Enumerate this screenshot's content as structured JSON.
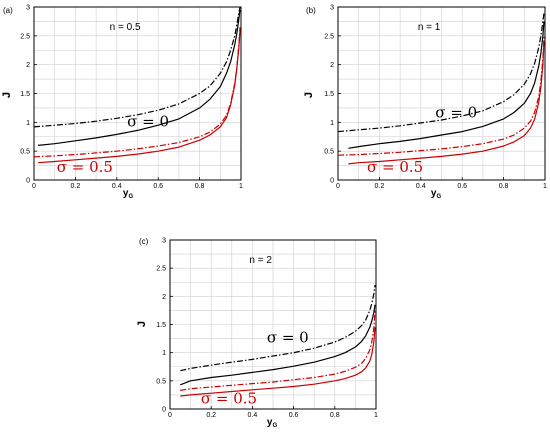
{
  "chart_data": [
    {
      "type": "line",
      "panel_label": "(a)",
      "annotation": "n = 0.5",
      "xlabel": "y",
      "xlabel_sub": "G",
      "ylabel": "J",
      "xlim": [
        0,
        1
      ],
      "ylim": [
        0,
        3
      ],
      "xticks": [
        "0",
        "0.2",
        "0.4",
        "0.6",
        "0.8",
        "1"
      ],
      "yticks": [
        "0",
        "0.5",
        "1",
        "1.5",
        "2",
        "2.5",
        "3"
      ],
      "grid": true,
      "curve_labels": [
        {
          "text": "σ = 0",
          "color": "#000000",
          "at": [
            0.45,
            0.93
          ]
        },
        {
          "text": "σ = 0.5",
          "color": "#cc0000",
          "at": [
            0.11,
            0.14
          ]
        }
      ],
      "series": [
        {
          "color": "#000000",
          "style": "solid",
          "x": [
            0.02,
            0.1,
            0.2,
            0.3,
            0.4,
            0.5,
            0.6,
            0.7,
            0.8,
            0.85,
            0.9,
            0.93,
            0.95,
            0.97,
            0.98,
            0.99,
            0.995
          ],
          "y": [
            0.6,
            0.63,
            0.68,
            0.73,
            0.79,
            0.86,
            0.95,
            1.06,
            1.25,
            1.4,
            1.62,
            1.85,
            2.05,
            2.35,
            2.55,
            2.8,
            2.95
          ]
        },
        {
          "color": "#000000",
          "style": "dashdot",
          "x": [
            0.0,
            0.1,
            0.2,
            0.3,
            0.4,
            0.5,
            0.6,
            0.7,
            0.8,
            0.85,
            0.9,
            0.93,
            0.95,
            0.97,
            0.98,
            0.99,
            0.995
          ],
          "y": [
            0.92,
            0.95,
            0.98,
            1.02,
            1.07,
            1.13,
            1.21,
            1.32,
            1.5,
            1.63,
            1.85,
            2.05,
            2.25,
            2.5,
            2.7,
            2.9,
            3.0
          ]
        },
        {
          "color": "#cc0000",
          "style": "solid",
          "x": [
            0.02,
            0.1,
            0.2,
            0.3,
            0.4,
            0.5,
            0.6,
            0.7,
            0.8,
            0.85,
            0.9,
            0.93,
            0.95,
            0.97,
            0.98,
            0.99,
            0.995
          ],
          "y": [
            0.3,
            0.32,
            0.35,
            0.38,
            0.41,
            0.45,
            0.5,
            0.57,
            0.69,
            0.78,
            0.92,
            1.08,
            1.3,
            1.65,
            1.95,
            2.3,
            2.6
          ]
        },
        {
          "color": "#cc0000",
          "style": "dashdot",
          "x": [
            0.0,
            0.1,
            0.2,
            0.3,
            0.4,
            0.5,
            0.6,
            0.7,
            0.8,
            0.85,
            0.9,
            0.93,
            0.95,
            0.97,
            0.98,
            0.99,
            0.995
          ],
          "y": [
            0.4,
            0.42,
            0.44,
            0.47,
            0.5,
            0.54,
            0.59,
            0.65,
            0.75,
            0.83,
            0.97,
            1.12,
            1.33,
            1.68,
            1.97,
            2.35,
            2.65
          ]
        }
      ]
    },
    {
      "type": "line",
      "panel_label": "(b)",
      "annotation": "n = 1",
      "xlabel": "y",
      "xlabel_sub": "G",
      "ylabel": "J",
      "xlim": [
        0,
        1
      ],
      "ylim": [
        0,
        3
      ],
      "xticks": [
        "0",
        "0.2",
        "0.4",
        "0.6",
        "0.8",
        "1"
      ],
      "yticks": [
        "0",
        "0.5",
        "1",
        "1.5",
        "2",
        "2.5",
        "3"
      ],
      "grid": true,
      "curve_labels": [
        {
          "text": "σ = 0",
          "color": "#000000",
          "at": [
            0.47,
            1.08
          ]
        },
        {
          "text": "σ = 0.5",
          "color": "#cc0000",
          "at": [
            0.14,
            0.14
          ]
        }
      ],
      "series": [
        {
          "color": "#000000",
          "style": "solid",
          "x": [
            0.05,
            0.1,
            0.2,
            0.3,
            0.4,
            0.5,
            0.6,
            0.7,
            0.8,
            0.85,
            0.9,
            0.93,
            0.95,
            0.97,
            0.98,
            0.99,
            0.995
          ],
          "y": [
            0.55,
            0.58,
            0.63,
            0.67,
            0.72,
            0.78,
            0.84,
            0.93,
            1.06,
            1.17,
            1.33,
            1.5,
            1.68,
            1.98,
            2.2,
            2.5,
            2.75
          ]
        },
        {
          "color": "#000000",
          "style": "dashdot",
          "x": [
            0.0,
            0.1,
            0.2,
            0.3,
            0.4,
            0.5,
            0.6,
            0.7,
            0.8,
            0.85,
            0.9,
            0.93,
            0.95,
            0.97,
            0.98,
            0.99,
            0.995
          ],
          "y": [
            0.84,
            0.87,
            0.9,
            0.94,
            0.99,
            1.04,
            1.11,
            1.2,
            1.36,
            1.48,
            1.66,
            1.84,
            2.02,
            2.3,
            2.5,
            2.75,
            2.9
          ]
        },
        {
          "color": "#cc0000",
          "style": "solid",
          "x": [
            0.05,
            0.1,
            0.2,
            0.3,
            0.4,
            0.5,
            0.6,
            0.7,
            0.8,
            0.85,
            0.9,
            0.93,
            0.95,
            0.97,
            0.98,
            0.99,
            0.995
          ],
          "y": [
            0.28,
            0.3,
            0.32,
            0.35,
            0.38,
            0.41,
            0.45,
            0.5,
            0.59,
            0.66,
            0.77,
            0.9,
            1.05,
            1.35,
            1.62,
            2.0,
            2.4
          ]
        },
        {
          "color": "#cc0000",
          "style": "dashdot",
          "x": [
            0.0,
            0.1,
            0.2,
            0.3,
            0.4,
            0.5,
            0.6,
            0.7,
            0.8,
            0.85,
            0.9,
            0.93,
            0.95,
            0.97,
            0.98,
            0.99,
            0.995
          ],
          "y": [
            0.43,
            0.44,
            0.46,
            0.48,
            0.51,
            0.54,
            0.58,
            0.63,
            0.71,
            0.78,
            0.9,
            1.02,
            1.17,
            1.45,
            1.72,
            2.1,
            2.5
          ]
        }
      ]
    },
    {
      "type": "line",
      "panel_label": "(c)",
      "annotation": "n = 2",
      "xlabel": "y",
      "xlabel_sub": "G",
      "ylabel": "J",
      "xlim": [
        0,
        1
      ],
      "ylim": [
        0,
        3
      ],
      "xticks": [
        "0",
        "0.2",
        "0.4",
        "0.6",
        "0.8",
        "1"
      ],
      "yticks": [
        "0",
        "0.5",
        "1",
        "1.5",
        "2",
        "2.5",
        "3"
      ],
      "grid": true,
      "curve_labels": [
        {
          "text": "σ = 0",
          "color": "#000000",
          "at": [
            0.47,
            1.18
          ]
        },
        {
          "text": "σ = 0.5",
          "color": "#cc0000",
          "at": [
            0.15,
            0.1
          ]
        }
      ],
      "series": [
        {
          "color": "#000000",
          "style": "solid",
          "x": [
            0.05,
            0.1,
            0.2,
            0.3,
            0.4,
            0.5,
            0.6,
            0.7,
            0.8,
            0.85,
            0.9,
            0.93,
            0.95,
            0.97,
            0.98,
            0.99,
            0.995
          ],
          "y": [
            0.43,
            0.5,
            0.56,
            0.6,
            0.65,
            0.7,
            0.76,
            0.83,
            0.93,
            1.0,
            1.1,
            1.2,
            1.3,
            1.45,
            1.57,
            1.72,
            1.85
          ]
        },
        {
          "color": "#000000",
          "style": "dashdot",
          "x": [
            0.05,
            0.1,
            0.2,
            0.3,
            0.4,
            0.5,
            0.6,
            0.7,
            0.8,
            0.85,
            0.9,
            0.93,
            0.95,
            0.97,
            0.98,
            0.99,
            0.995
          ],
          "y": [
            0.68,
            0.72,
            0.78,
            0.83,
            0.88,
            0.94,
            1.0,
            1.08,
            1.19,
            1.27,
            1.38,
            1.48,
            1.58,
            1.75,
            1.88,
            2.05,
            2.2
          ]
        },
        {
          "color": "#cc0000",
          "style": "solid",
          "x": [
            0.05,
            0.1,
            0.2,
            0.3,
            0.4,
            0.5,
            0.6,
            0.7,
            0.8,
            0.85,
            0.9,
            0.93,
            0.95,
            0.97,
            0.98,
            0.99,
            0.995
          ],
          "y": [
            0.23,
            0.25,
            0.28,
            0.31,
            0.34,
            0.37,
            0.4,
            0.44,
            0.5,
            0.54,
            0.6,
            0.66,
            0.73,
            0.85,
            0.98,
            1.2,
            1.45
          ]
        },
        {
          "color": "#cc0000",
          "style": "dashdot",
          "x": [
            0.05,
            0.1,
            0.2,
            0.3,
            0.4,
            0.5,
            0.6,
            0.7,
            0.8,
            0.85,
            0.9,
            0.93,
            0.95,
            0.97,
            0.98,
            0.99,
            0.995
          ],
          "y": [
            0.33,
            0.36,
            0.39,
            0.42,
            0.45,
            0.48,
            0.52,
            0.56,
            0.62,
            0.67,
            0.74,
            0.81,
            0.9,
            1.05,
            1.2,
            1.45,
            1.75
          ]
        }
      ]
    }
  ]
}
